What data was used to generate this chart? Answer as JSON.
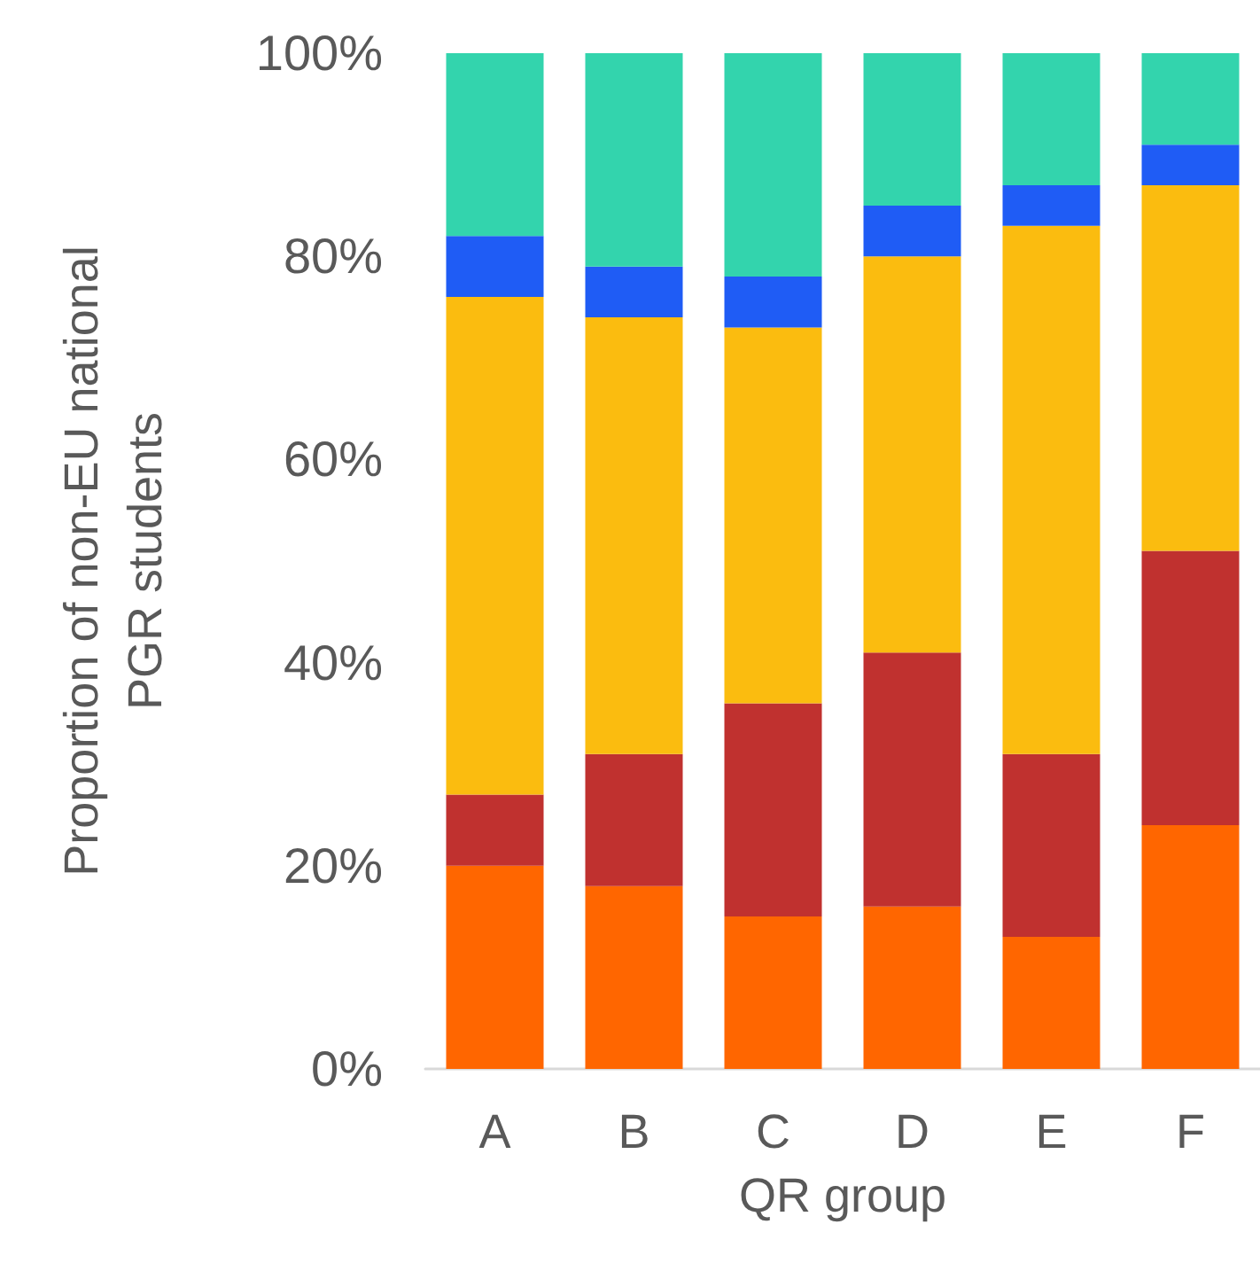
{
  "chart_data": {
    "type": "bar",
    "stacked": true,
    "xlabel": "QR group",
    "ylabel": "Proportion of non-EU national\nPGR students",
    "categories": [
      "A",
      "B",
      "C",
      "D",
      "E",
      "F"
    ],
    "series": [
      {
        "color": "#ff6600",
        "values": [
          20,
          18,
          15,
          16,
          13,
          24
        ]
      },
      {
        "color": "#c0312f",
        "values": [
          7,
          13,
          21,
          25,
          18,
          27
        ]
      },
      {
        "color": "#fbbc0f",
        "values": [
          49,
          43,
          37,
          39,
          52,
          36
        ]
      },
      {
        "color": "#1f5cf5",
        "values": [
          6,
          5,
          5,
          5,
          4,
          4
        ]
      },
      {
        "color": "#33d4ad",
        "values": [
          18,
          21,
          22,
          15,
          13,
          9
        ]
      }
    ],
    "ylim": [
      0,
      100
    ],
    "yticks": [
      {
        "value": 0,
        "label": "0%"
      },
      {
        "value": 20,
        "label": "20%"
      },
      {
        "value": 40,
        "label": "40%"
      },
      {
        "value": 60,
        "label": "60%"
      },
      {
        "value": 80,
        "label": "80%"
      },
      {
        "value": 100,
        "label": "100%"
      }
    ],
    "grid": false
  }
}
